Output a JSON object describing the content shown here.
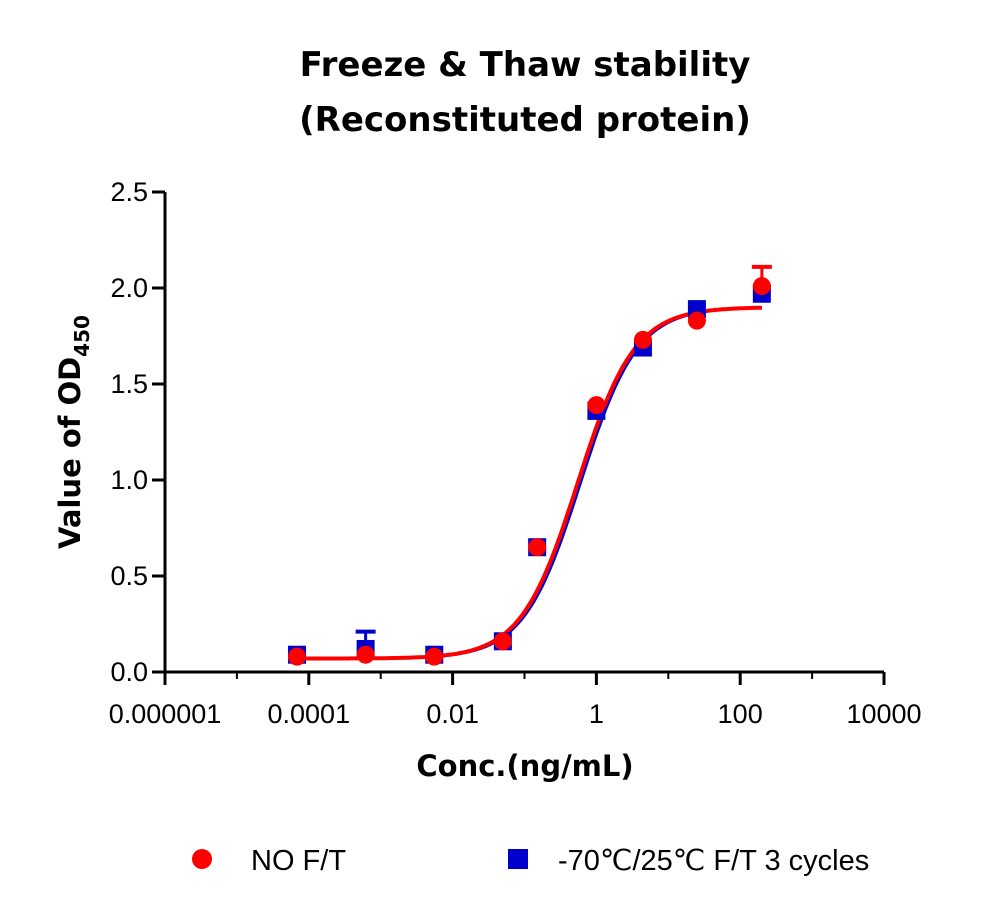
{
  "chart_data": {
    "type": "scatter",
    "title": "Freeze & Thaw stability",
    "subtitle": "(Reconstituted protein)",
    "xlabel": "Conc.(ng/mL)",
    "ylabel_main": "Value of OD",
    "ylabel_sub": "450",
    "x_scale": "log",
    "xlim": [
      1e-06,
      10000
    ],
    "ylim": [
      0,
      2.5
    ],
    "x_ticks": [
      {
        "value": 1e-06,
        "label": "0.000001"
      },
      {
        "value": 0.0001,
        "label": "0.0001"
      },
      {
        "value": 0.01,
        "label": "0.01"
      },
      {
        "value": 1,
        "label": "1"
      },
      {
        "value": 100,
        "label": "100"
      },
      {
        "value": 10000,
        "label": "10000"
      }
    ],
    "y_ticks": [
      {
        "value": 0,
        "label": "0.0"
      },
      {
        "value": 0.5,
        "label": "0.5"
      },
      {
        "value": 1,
        "label": "1.0"
      },
      {
        "value": 1.5,
        "label": "1.5"
      },
      {
        "value": 2,
        "label": "2.0"
      },
      {
        "value": 2.5,
        "label": "2.5"
      }
    ],
    "grid": false,
    "legend_position": "bottom",
    "series": [
      {
        "name": "NO F/T",
        "marker": "circle",
        "color": "#ff0000",
        "points": [
          {
            "x": 6.86e-05,
            "y": 0.08,
            "err": 0.0
          },
          {
            "x": 0.000617,
            "y": 0.09,
            "err": 0.0
          },
          {
            "x": 0.00556,
            "y": 0.08,
            "err": 0.0
          },
          {
            "x": 0.05,
            "y": 0.16,
            "err": 0.0
          },
          {
            "x": 0.15,
            "y": 0.65,
            "err": 0.0
          },
          {
            "x": 1.0,
            "y": 1.39,
            "err": 0.0
          },
          {
            "x": 4.44,
            "y": 1.73,
            "err": 0.0
          },
          {
            "x": 25.0,
            "y": 1.83,
            "err": 0.0
          },
          {
            "x": 200.0,
            "y": 2.01,
            "err": 0.1
          }
        ],
        "fit": {
          "bottom": 0.07,
          "top": 1.9,
          "ec50": 0.55,
          "hill": 1.1
        }
      },
      {
        "name": "-70℃/25℃ F/T 3 cycles",
        "marker": "square",
        "color": "#0000cc",
        "points": [
          {
            "x": 6.86e-05,
            "y": 0.09,
            "err": 0.0
          },
          {
            "x": 0.000617,
            "y": 0.12,
            "err": 0.09
          },
          {
            "x": 0.00556,
            "y": 0.09,
            "err": 0.0
          },
          {
            "x": 0.05,
            "y": 0.16,
            "err": 0.0
          },
          {
            "x": 0.15,
            "y": 0.65,
            "err": 0.0
          },
          {
            "x": 1.0,
            "y": 1.36,
            "err": 0.0
          },
          {
            "x": 4.44,
            "y": 1.69,
            "err": 0.0
          },
          {
            "x": 25.0,
            "y": 1.89,
            "err": 0.0
          },
          {
            "x": 200.0,
            "y": 1.97,
            "err": 0.0
          }
        ],
        "fit": {
          "bottom": 0.07,
          "top": 1.9,
          "ec50": 0.6,
          "hill": 1.1
        }
      }
    ]
  }
}
